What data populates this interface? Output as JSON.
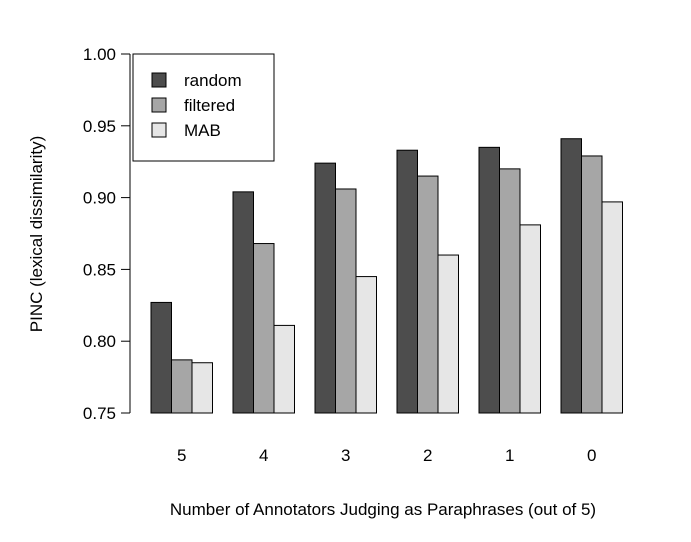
{
  "chart_data": {
    "type": "bar",
    "title": "",
    "xlabel": "Number of Annotators Judging as Paraphrases (out of 5)",
    "ylabel": "PINC (lexical dissimilarity)",
    "ylim": [
      0.75,
      1.0
    ],
    "yticks": [
      "0.75",
      "0.80",
      "0.85",
      "0.90",
      "0.95",
      "1.00"
    ],
    "categories": [
      "5",
      "4",
      "3",
      "2",
      "1",
      "0"
    ],
    "series": [
      {
        "name": "random",
        "color": "#4d4d4d",
        "values": [
          0.827,
          0.904,
          0.924,
          0.933,
          0.935,
          0.941
        ]
      },
      {
        "name": "filtered",
        "color": "#a6a6a6",
        "values": [
          0.787,
          0.868,
          0.906,
          0.915,
          0.92,
          0.929
        ]
      },
      {
        "name": "MAB",
        "color": "#e6e6e6",
        "values": [
          0.785,
          0.811,
          0.845,
          0.86,
          0.881,
          0.897
        ]
      }
    ],
    "legend_position": "top-left",
    "grid": false
  }
}
